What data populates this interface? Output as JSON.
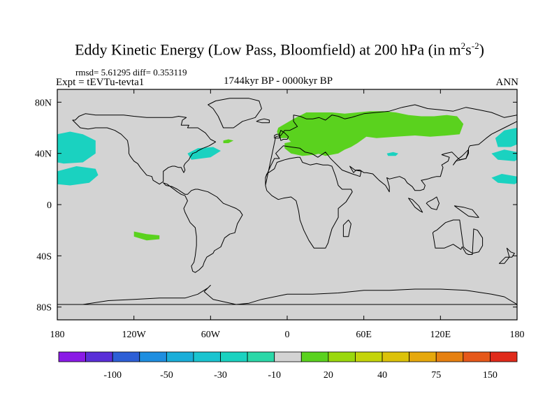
{
  "title": {
    "main": "Eddy Kinetic Energy (Low Pass, Bloomfield) at 200 hPa (in m",
    "sup1": "2",
    "mid": "s",
    "sup2": "-2",
    "close": ")"
  },
  "stats": "rmsd= 5.61295 diff= 0.353119",
  "experiment": "Expt = tEVTu-tevta1",
  "period": "1744kyr BP - 0000kyr BP",
  "season": "ANN",
  "map": {
    "background_color": "#d3d3d3",
    "lon_ticks": [
      "180",
      "120W",
      "60W",
      "0",
      "60E",
      "120E",
      "180"
    ],
    "lat_ticks": [
      "80N",
      "40N",
      "0",
      "40S",
      "80S"
    ],
    "lon_values": [
      -180,
      -120,
      -60,
      0,
      60,
      120,
      180
    ],
    "lat_values": [
      80,
      40,
      0,
      -40,
      -80
    ]
  },
  "colorbar": {
    "colors": [
      "#8a1ae6",
      "#5a2fd8",
      "#2d5fd6",
      "#1e8ee0",
      "#1aaed9",
      "#1ac4d0",
      "#1ad2c0",
      "#2bd8a8",
      "#d3d3d3",
      "#5ad21e",
      "#9ad80c",
      "#c4d40a",
      "#dcc20a",
      "#e6a80c",
      "#e68010",
      "#e6581a",
      "#e02a1a"
    ],
    "labels": [
      "-100",
      "-50",
      "-30",
      "-10",
      "20",
      "40",
      "75",
      "150"
    ]
  },
  "anomaly_patches": [
    {
      "name": "north-pacific-east-negative",
      "sign": "negative",
      "color": "#1ad2c0",
      "lon": [
        -180,
        -170,
        -160,
        -150,
        -150,
        -160,
        -175,
        -180
      ],
      "lat": [
        55,
        57,
        55,
        50,
        40,
        33,
        32,
        33
      ]
    },
    {
      "name": "subtropical-pacific-east-negative",
      "sign": "negative",
      "color": "#1ad2c0",
      "lon": [
        -180,
        -165,
        -150,
        -148,
        -155,
        -170,
        -180
      ],
      "lat": [
        26,
        30,
        28,
        23,
        17,
        15,
        16
      ]
    },
    {
      "name": "north-pacific-west-negative",
      "sign": "negative",
      "color": "#1ad2c0",
      "lon": [
        180,
        170,
        163,
        165,
        175,
        180
      ],
      "lat": [
        60,
        58,
        52,
        45,
        45,
        47
      ]
    },
    {
      "name": "west-pacific-negative",
      "sign": "negative",
      "color": "#1ad2c0",
      "lon": [
        180,
        170,
        160,
        165,
        178,
        180
      ],
      "lat": [
        41,
        43,
        40,
        35,
        34,
        35
      ]
    },
    {
      "name": "west-pacific-south-negative",
      "sign": "negative",
      "color": "#1ad2c0",
      "lon": [
        180,
        168,
        160,
        165,
        178,
        180
      ],
      "lat": [
        22,
        24,
        21,
        17,
        16,
        17
      ]
    },
    {
      "name": "north-atlantic-west-negative",
      "sign": "negative",
      "color": "#1ad2c0",
      "lon": [
        -78,
        -70,
        -58,
        -52,
        -60,
        -75
      ],
      "lat": [
        40,
        44,
        45,
        42,
        37,
        35
      ]
    },
    {
      "name": "central-asia-negative",
      "sign": "negative",
      "color": "#1ad2c0",
      "lon": [
        78,
        83,
        87,
        85,
        79
      ],
      "lat": [
        40,
        41,
        40,
        38,
        38
      ]
    },
    {
      "name": "eurasia-positive",
      "sign": "positive",
      "color": "#5ad21e",
      "lon": [
        -7,
        5,
        15,
        25,
        35,
        45,
        55,
        65,
        75,
        85,
        95,
        105,
        115,
        125,
        133,
        138,
        135,
        125,
        112,
        100,
        85,
        70,
        62,
        55,
        50,
        45,
        40,
        30,
        20,
        12,
        5,
        0,
        -6,
        -8
      ],
      "lat": [
        60,
        67,
        72,
        72,
        72,
        71,
        72,
        73,
        73,
        72,
        70,
        69,
        69,
        70,
        69,
        63,
        55,
        54,
        53,
        54,
        53,
        52,
        53,
        48,
        45,
        43,
        40,
        38,
        41,
        44,
        47,
        52,
        52,
        57
      ]
    },
    {
      "name": "mediterranean-positive",
      "sign": "positive",
      "color": "#5ad21e",
      "lon": [
        -2,
        8,
        18,
        28,
        35,
        33,
        22,
        12,
        3,
        -2
      ],
      "lat": [
        48,
        50,
        48,
        48,
        45,
        42,
        39,
        38,
        40,
        44
      ]
    },
    {
      "name": "atlantic-small-positive",
      "sign": "positive",
      "color": "#5ad21e",
      "lon": [
        -50,
        -46,
        -42,
        -46,
        -50
      ],
      "lat": [
        50,
        51,
        50,
        48,
        48
      ]
    },
    {
      "name": "south-pacific-positive",
      "sign": "positive",
      "color": "#5ad21e",
      "lon": [
        -120,
        -110,
        -100,
        -100,
        -110,
        -120
      ],
      "lat": [
        -21,
        -23,
        -24,
        -27,
        -28,
        -25
      ]
    }
  ],
  "coastlines": [
    {
      "name": "north-america",
      "lon": [
        -168,
        -162,
        -156,
        -150,
        -141,
        -135,
        -130,
        -125,
        -124,
        -124,
        -123,
        -120,
        -117,
        -115,
        -110,
        -106,
        -105,
        -100,
        -97,
        -97,
        -93,
        -90,
        -88,
        -85,
        -83,
        -82,
        -81,
        -80,
        -81,
        -80,
        -77,
        -76,
        -74,
        -71,
        -70,
        -66,
        -61,
        -56,
        -60,
        -64,
        -70,
        -78,
        -77,
        -83,
        -82,
        -79,
        -85,
        -90,
        -95,
        -100,
        -110,
        -120,
        -128,
        -140,
        -150,
        -158,
        -163,
        -166,
        -168
      ],
      "lat": [
        66,
        60,
        59,
        60,
        60,
        58,
        55,
        50,
        44,
        40,
        38,
        34,
        32,
        29,
        23,
        22,
        19,
        16,
        18,
        26,
        29,
        30,
        30,
        29,
        29,
        27,
        25,
        27,
        30,
        32,
        35,
        37,
        40,
        41,
        42,
        44,
        46,
        49,
        51,
        56,
        60,
        60,
        62,
        62,
        66,
        68,
        69,
        68,
        68,
        68,
        68,
        69,
        70,
        70,
        70,
        71,
        69,
        66,
        66
      ]
    },
    {
      "name": "greenland",
      "lon": [
        -50,
        -42,
        -35,
        -25,
        -20,
        -22,
        -30,
        -45,
        -56,
        -62,
        -58,
        -54,
        -50
      ],
      "lat": [
        60,
        60,
        65,
        68,
        75,
        81,
        83,
        83,
        81,
        78,
        75,
        69,
        60
      ]
    },
    {
      "name": "central-south-america",
      "lon": [
        -97,
        -95,
        -90,
        -86,
        -83,
        -80,
        -78,
        -75,
        -72,
        -70,
        -62,
        -55,
        -50,
        -45,
        -40,
        -37,
        -35,
        -39,
        -41,
        -45,
        -49,
        -52,
        -57,
        -58,
        -63,
        -65,
        -66,
        -69,
        -72,
        -74,
        -75,
        -73,
        -72,
        -71,
        -71,
        -72,
        -76,
        -80,
        -81,
        -80,
        -79,
        -78,
        -80,
        -83,
        -86,
        -90,
        -94,
        -97
      ],
      "lat": [
        17,
        15,
        14,
        12,
        10,
        8,
        8,
        11,
        12,
        12,
        10,
        6,
        1,
        -1,
        -3,
        -5,
        -8,
        -15,
        -22,
        -23,
        -26,
        -33,
        -36,
        -38,
        -41,
        -45,
        -48,
        -51,
        -53,
        -52,
        -48,
        -45,
        -40,
        -32,
        -25,
        -18,
        -14,
        -6,
        -3,
        -1,
        1,
        3,
        7,
        8,
        10,
        13,
        16,
        17
      ]
    },
    {
      "name": "afro-eurasia",
      "lon": [
        -17,
        -17,
        -16,
        -10,
        -8,
        -2,
        2,
        8,
        10,
        12,
        18,
        23,
        28,
        32,
        35,
        38,
        40,
        43,
        50,
        51,
        46,
        40,
        40,
        35,
        33,
        32,
        30,
        27,
        21,
        17,
        13,
        10,
        9,
        7,
        3,
        -3,
        -7,
        -12,
        -16,
        -17,
        -17,
        -13,
        -10,
        -6,
        -9,
        -6,
        -3,
        3,
        10,
        14,
        19,
        24,
        30,
        34,
        36,
        40,
        43,
        51,
        57,
        58,
        53,
        49,
        52,
        54,
        57,
        60,
        62,
        67,
        70,
        72,
        77,
        80,
        80,
        78,
        80,
        88,
        92,
        94,
        98,
        100,
        104,
        107,
        108,
        105,
        110,
        113,
        117,
        120,
        122,
        121,
        126,
        127,
        121,
        124,
        129,
        135,
        140,
        142,
        142,
        143,
        150,
        156,
        160,
        170,
        180,
        180,
        170,
        160,
        150,
        140,
        130,
        120,
        110,
        100,
        90,
        80,
        70,
        60,
        50,
        45,
        40,
        35,
        30,
        25,
        20,
        15,
        10,
        5,
        5,
        8,
        2,
        -2,
        -5,
        -9
      ],
      "lat": [
        15,
        21,
        24,
        28,
        33,
        35,
        36,
        37,
        37,
        33,
        31,
        32,
        31,
        31,
        30,
        22,
        15,
        12,
        12,
        10,
        2,
        -3,
        -10,
        -19,
        -26,
        -30,
        -34,
        -34,
        -34,
        -28,
        -20,
        -12,
        -5,
        3,
        6,
        5,
        4,
        7,
        11,
        15,
        21,
        30,
        36,
        36,
        40,
        43,
        46,
        45,
        44,
        41,
        40,
        37,
        41,
        36,
        34,
        30,
        27,
        24,
        22,
        26,
        27,
        30,
        25,
        27,
        27,
        25,
        25,
        24,
        21,
        19,
        15,
        10,
        14,
        21,
        20,
        22,
        20,
        17,
        14,
        11,
        11,
        12,
        15,
        19,
        20,
        21,
        22,
        22,
        29,
        31,
        34,
        37,
        39,
        40,
        41,
        35,
        36,
        40,
        44,
        46,
        47,
        52,
        55,
        60,
        65,
        70,
        68,
        72,
        74,
        76,
        73,
        74,
        75,
        78,
        76,
        73,
        72,
        71,
        68,
        67,
        69,
        70,
        66,
        68,
        67,
        67,
        69,
        70,
        65,
        61,
        58,
        58,
        54,
        53,
        51,
        48,
        43,
        40,
        44
      ]
    },
    {
      "name": "uk",
      "lon": [
        -5,
        -3,
        0,
        1,
        -2,
        -5,
        -6,
        -5
      ],
      "lat": [
        50,
        51,
        51,
        53,
        56,
        58,
        55,
        50
      ]
    },
    {
      "name": "ireland",
      "lon": [
        -10,
        -6,
        -6,
        -8,
        -10,
        -10
      ],
      "lat": [
        52,
        52,
        55,
        55,
        54,
        52
      ]
    },
    {
      "name": "iceland",
      "lon": [
        -24,
        -20,
        -14,
        -14,
        -18,
        -22,
        -24
      ],
      "lat": [
        65,
        64,
        64,
        66,
        67,
        66,
        65
      ]
    },
    {
      "name": "madagascar",
      "lon": [
        44,
        48,
        50,
        48,
        44,
        44
      ],
      "lat": [
        -25,
        -25,
        -15,
        -12,
        -16,
        -25
      ]
    },
    {
      "name": "japan",
      "lon": [
        130,
        132,
        136,
        140,
        141,
        142,
        140,
        137,
        133,
        130
      ],
      "lat": [
        31,
        34,
        35,
        36,
        39,
        43,
        41,
        38,
        35,
        31
      ]
    },
    {
      "name": "sumatra",
      "lon": [
        95,
        98,
        103,
        106,
        104,
        100,
        95
      ],
      "lat": [
        5,
        4,
        -1,
        -6,
        -5,
        -2,
        5
      ]
    },
    {
      "name": "borneo",
      "lon": [
        109,
        113,
        117,
        119,
        117,
        114,
        110,
        109
      ],
      "lat": [
        1,
        -3,
        -4,
        1,
        6,
        4,
        2,
        1
      ]
    },
    {
      "name": "new-guinea",
      "lon": [
        131,
        138,
        145,
        150,
        148,
        142,
        135,
        131
      ],
      "lat": [
        -1,
        -2,
        -4,
        -10,
        -10,
        -9,
        -4,
        -1
      ]
    },
    {
      "name": "australia",
      "lon": [
        114,
        116,
        123,
        130,
        136,
        137,
        140,
        142,
        145,
        146,
        149,
        153,
        153,
        150,
        145,
        140,
        138,
        135,
        130,
        124,
        117,
        115,
        114
      ],
      "lat": [
        -22,
        -34,
        -34,
        -31,
        -35,
        -33,
        -38,
        -39,
        -39,
        -19,
        -20,
        -26,
        -32,
        -37,
        -38,
        -35,
        -33,
        -12,
        -12,
        -14,
        -20,
        -21,
        -22
      ]
    },
    {
      "name": "new-zealand",
      "lon": [
        172,
        175,
        178,
        176,
        174,
        172
      ],
      "lat": [
        -34,
        -37,
        -38,
        -41,
        -41,
        -34
      ]
    },
    {
      "name": "new-zealand-south",
      "lon": [
        166,
        171,
        174,
        170,
        166
      ],
      "lat": [
        -46,
        -41,
        -41,
        -46,
        -46
      ]
    },
    {
      "name": "antarctica",
      "lon": [
        -180,
        -160,
        -140,
        -120,
        -100,
        -80,
        -70,
        -62,
        -60,
        -65,
        -58,
        -40,
        -30,
        -20,
        0,
        20,
        40,
        60,
        80,
        100,
        120,
        140,
        160,
        170,
        180
      ],
      "lat": [
        -78,
        -78,
        -75,
        -74,
        -73,
        -73,
        -70,
        -65,
        -63,
        -68,
        -74,
        -78,
        -77,
        -74,
        -70,
        -70,
        -69,
        -67,
        -67,
        -66,
        -66,
        -67,
        -70,
        -72,
        -78
      ]
    }
  ]
}
